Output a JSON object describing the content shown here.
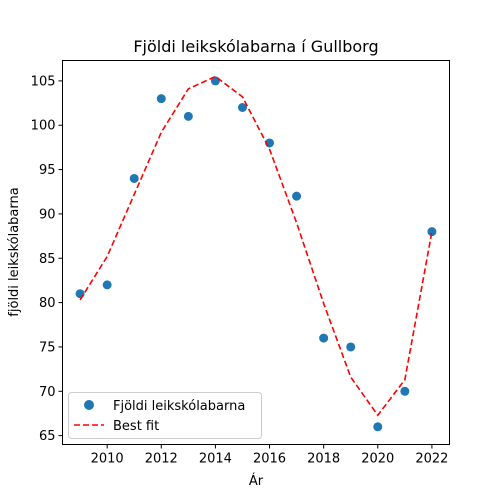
{
  "chart_data": {
    "type": "scatter",
    "title": "Fjöldi leikskólabarna í Gullborg",
    "xlabel": "Ár",
    "ylabel": "fjöldi leikskólabarna",
    "xlim": [
      2008.35,
      2022.65
    ],
    "ylim": [
      64.0,
      107.3
    ],
    "xticks": [
      2010,
      2012,
      2014,
      2016,
      2018,
      2020,
      2022
    ],
    "yticks": [
      65,
      70,
      75,
      80,
      85,
      90,
      95,
      100,
      105
    ],
    "grid": false,
    "legend_position": "lower-left",
    "series": [
      {
        "name": "Fjöldi leikskólabarna",
        "kind": "scatter",
        "color": "#1f77b4",
        "x": [
          2009,
          2010,
          2011,
          2012,
          2013,
          2014,
          2015,
          2016,
          2017,
          2018,
          2019,
          2020,
          2021,
          2022
        ],
        "y": [
          81,
          82,
          94,
          103,
          101,
          105,
          102,
          98,
          92,
          76,
          75,
          66,
          70,
          88
        ]
      },
      {
        "name": "Best fit",
        "kind": "line",
        "line_style": "dashed",
        "color": "#ff0000",
        "x": [
          2009,
          2010,
          2011,
          2012,
          2013,
          2014,
          2015,
          2016,
          2017,
          2018,
          2019,
          2020,
          2021,
          2022
        ],
        "y": [
          80.3,
          85.2,
          92.2,
          99.2,
          104.1,
          105.5,
          103.2,
          97.3,
          89.0,
          79.9,
          71.6,
          67.3,
          71.3,
          88.0
        ]
      }
    ]
  }
}
